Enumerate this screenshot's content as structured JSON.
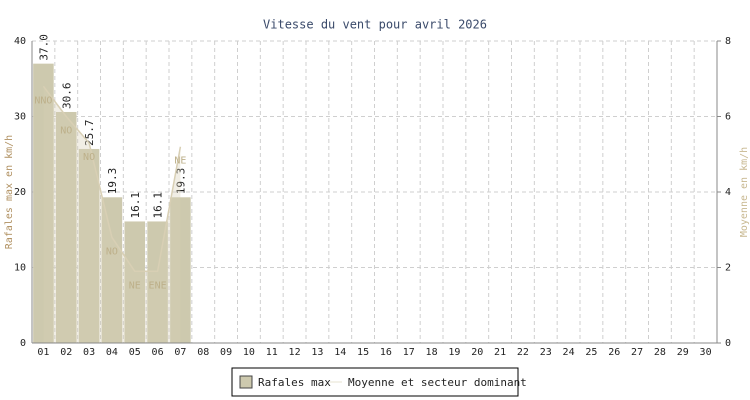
{
  "chart_data": {
    "type": "bar",
    "title": "Vitesse du vent pour avril 2026",
    "y_label": "Rafales max en km/h",
    "y2_label": "Moyenne en km/h",
    "categories": [
      "01",
      "02",
      "03",
      "04",
      "05",
      "06",
      "07",
      "08",
      "09",
      "10",
      "11",
      "12",
      "13",
      "14",
      "15",
      "16",
      "17",
      "18",
      "19",
      "20",
      "21",
      "22",
      "23",
      "24",
      "25",
      "26",
      "27",
      "28",
      "29",
      "30"
    ],
    "series": [
      {
        "name": "Rafales max",
        "type": "bar",
        "color": "#cdc9ae",
        "values": [
          37.0,
          30.6,
          25.7,
          19.3,
          16.1,
          16.1,
          19.3,
          null,
          null,
          null,
          null,
          null,
          null,
          null,
          null,
          null,
          null,
          null,
          null,
          null,
          null,
          null,
          null,
          null,
          null,
          null,
          null,
          null,
          null,
          null
        ],
        "value_labels": [
          "37.0",
          "30.6",
          "25.7",
          "19.3",
          "16.1",
          "16.1",
          "19.3",
          null,
          null,
          null,
          null,
          null,
          null,
          null,
          null,
          null,
          null,
          null,
          null,
          null,
          null,
          null,
          null,
          null,
          null,
          null,
          null,
          null,
          null,
          null
        ]
      },
      {
        "name": "Moyenne et secteur dominant",
        "type": "area",
        "axis": "y2",
        "color": "#d8cfb4",
        "values": [
          6.8,
          6.0,
          5.3,
          2.8,
          1.9,
          1.9,
          5.2,
          null,
          null,
          null,
          null,
          null,
          null,
          null,
          null,
          null,
          null,
          null,
          null,
          null,
          null,
          null,
          null,
          null,
          null,
          null,
          null,
          null,
          null,
          null
        ],
        "labels": [
          "NNO",
          "NO",
          "NO",
          "NO",
          "NE",
          "ENE",
          "NE",
          null,
          null,
          null,
          null,
          null,
          null,
          null,
          null,
          null,
          null,
          null,
          null,
          null,
          null,
          null,
          null,
          null,
          null,
          null,
          null,
          null,
          null,
          null
        ]
      }
    ],
    "ylim": [
      0,
      40
    ],
    "yticks": [
      0,
      10,
      20,
      30,
      40
    ],
    "y2lim": [
      0,
      8
    ],
    "y2ticks": [
      0,
      2,
      4,
      6,
      8
    ],
    "grid": true,
    "legend": "bottom"
  }
}
